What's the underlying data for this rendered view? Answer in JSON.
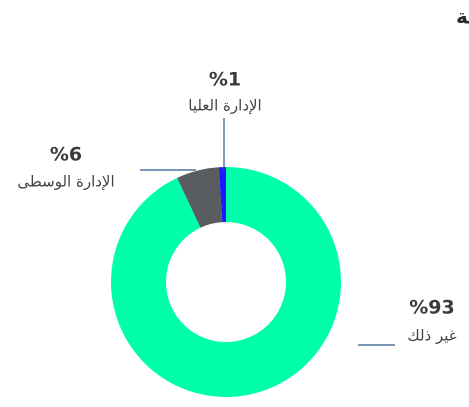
{
  "chart_data": {
    "type": "donut",
    "title": "ساعات التدريب حسب الدرجة",
    "categories": [
      "الإدارة العليا",
      "الإدارة الوسطى",
      "غير ذلك"
    ],
    "values": [
      1,
      6,
      93
    ],
    "value_labels": [
      "%1",
      "%6",
      "%93"
    ],
    "colors": [
      "#1a1aff",
      "#5a5d60",
      "#00ffaa"
    ]
  }
}
